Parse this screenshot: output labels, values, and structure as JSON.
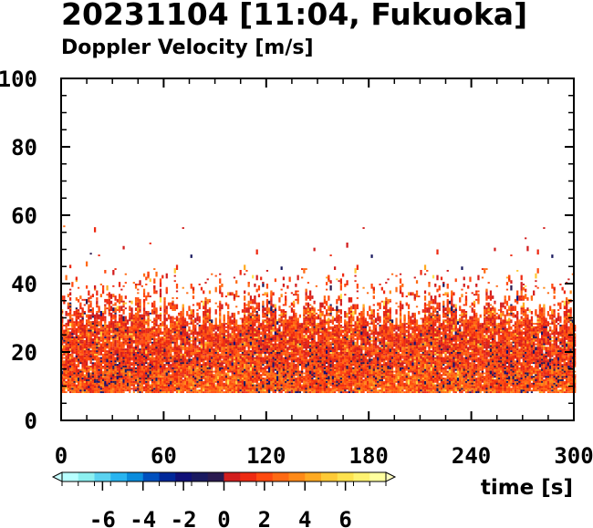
{
  "chart_data": {
    "type": "heatmap",
    "title": "20231104 [11:04, Fukuoka]",
    "subtitle": "Doppler Velocity [m/s]",
    "xlabel": "time [s]",
    "ylabel": "",
    "xlim": [
      0,
      300
    ],
    "ylim": [
      0,
      100
    ],
    "x_ticks": [
      "0",
      "60",
      "120",
      "180",
      "240",
      "300"
    ],
    "y_ticks": [
      "0",
      "20",
      "40",
      "60",
      "80",
      "100"
    ],
    "x_tick_values": [
      0,
      60,
      120,
      180,
      240,
      300
    ],
    "y_tick_values": [
      0,
      20,
      40,
      60,
      80,
      100
    ],
    "grid": false,
    "colorbar": {
      "range": [
        -8,
        8
      ],
      "tick_values": [
        -6,
        -4,
        -2,
        0,
        2,
        4,
        6
      ],
      "tick_labels": [
        "-6",
        "-4",
        "-2",
        "0",
        "2",
        "4",
        "6"
      ],
      "colors": [
        "#b8ffff",
        "#8cf0f0",
        "#5ad2f0",
        "#28b4f0",
        "#0a8cdc",
        "#0050be",
        "#00289a",
        "#101078",
        "#1a1a60",
        "#2a1a50",
        "#d21e1e",
        "#ee2a12",
        "#ff4a10",
        "#ff6a14",
        "#ff8a18",
        "#ffaa22",
        "#ffca36",
        "#ffe24e",
        "#fff270",
        "#ffff9e"
      ]
    },
    "data_summary": {
      "echo_floor_height": 8,
      "dense_echo_top_height": 30,
      "sparse_echo_top_height": 44,
      "max_echo_height": 58,
      "dominant_velocity_range": [
        0,
        4
      ],
      "velocity_range": [
        -2,
        6
      ]
    }
  }
}
